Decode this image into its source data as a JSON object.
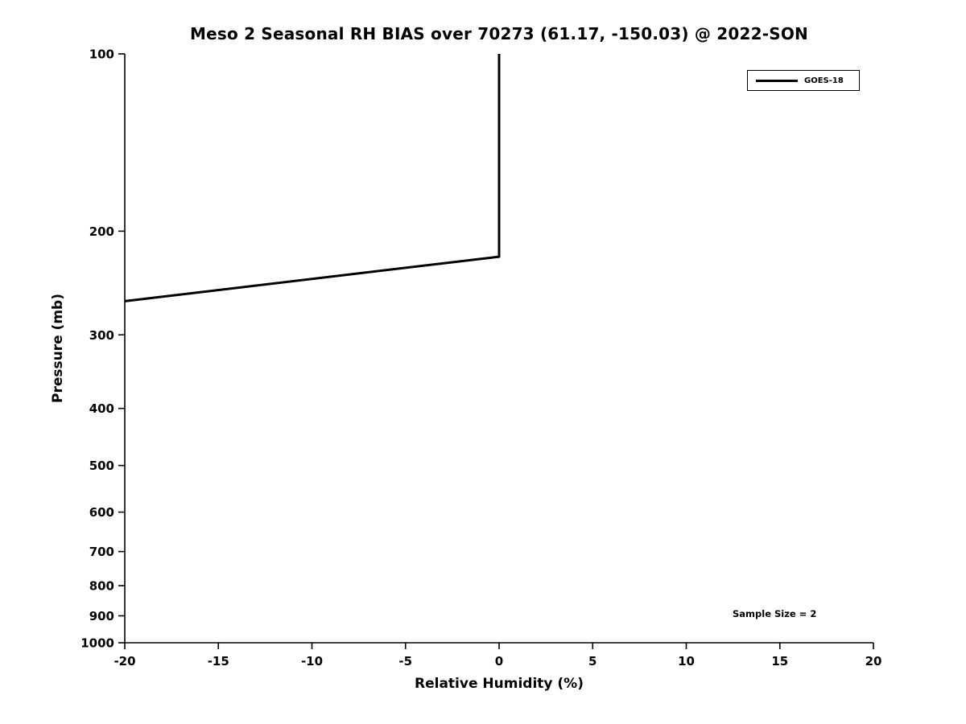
{
  "title": "Meso 2 Seasonal RH BIAS over 70273 (61.17, -150.03) @ 2022-SON",
  "legend": {
    "entries": [
      {
        "label": "GOES-18",
        "color": "#000000"
      }
    ]
  },
  "chart_data": {
    "type": "line",
    "title": "Meso 2 Seasonal RH BIAS over 70273 (61.17, -150.03) @ 2022-SON",
    "xlabel": "Relative Humidity (%)",
    "ylabel": "Pressure (mb)",
    "xlim": [
      -20,
      20
    ],
    "xticks": [
      -20,
      -15,
      -10,
      -5,
      0,
      5,
      10,
      15,
      20
    ],
    "yscale": "log",
    "y_inverted": true,
    "ylim": [
      100,
      1000
    ],
    "yticks": [
      100,
      200,
      300,
      400,
      500,
      600,
      700,
      800,
      900,
      1000
    ],
    "grid": false,
    "legend_position": "upper right",
    "series": [
      {
        "name": "GOES-18",
        "color": "#000000",
        "linewidth": 3,
        "points": [
          {
            "x": 0,
            "y": 100
          },
          {
            "x": 0,
            "y": 221
          },
          {
            "x": -20,
            "y": 263
          }
        ]
      }
    ],
    "annotations": [
      {
        "text": "Sample Size = 2"
      }
    ]
  }
}
